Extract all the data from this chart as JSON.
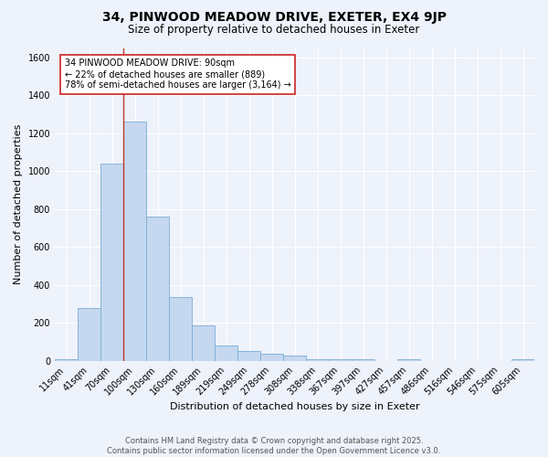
{
  "title_line1": "34, PINWOOD MEADOW DRIVE, EXETER, EX4 9JP",
  "title_line2": "Size of property relative to detached houses in Exeter",
  "xlabel": "Distribution of detached houses by size in Exeter",
  "ylabel": "Number of detached properties",
  "bar_labels": [
    "11sqm",
    "41sqm",
    "70sqm",
    "100sqm",
    "130sqm",
    "160sqm",
    "189sqm",
    "219sqm",
    "249sqm",
    "278sqm",
    "308sqm",
    "338sqm",
    "367sqm",
    "397sqm",
    "427sqm",
    "457sqm",
    "486sqm",
    "516sqm",
    "546sqm",
    "575sqm",
    "605sqm"
  ],
  "bar_values": [
    10,
    280,
    1040,
    1260,
    760,
    335,
    185,
    80,
    50,
    38,
    25,
    10,
    8,
    10,
    0,
    10,
    0,
    0,
    0,
    0,
    10
  ],
  "bar_color": "#c5d8f0",
  "bar_edge_color": "#7aadd4",
  "background_color": "#eef2fb",
  "grid_color": "#ffffff",
  "vline_color": "#c0392b",
  "ylim": [
    0,
    1650
  ],
  "yticks": [
    0,
    200,
    400,
    600,
    800,
    1000,
    1200,
    1400,
    1600
  ],
  "annotation_text": "34 PINWOOD MEADOW DRIVE: 90sqm\n← 22% of detached houses are smaller (889)\n78% of semi-detached houses are larger (3,164) →",
  "annotation_box_color": "#ffffff",
  "annotation_box_edge_color": "#cc2222",
  "footer_text": "Contains HM Land Registry data © Crown copyright and database right 2025.\nContains public sector information licensed under the Open Government Licence v3.0.",
  "title_fontsize": 10,
  "subtitle_fontsize": 8.5,
  "axis_label_fontsize": 8,
  "tick_fontsize": 7,
  "annotation_fontsize": 7,
  "footer_fontsize": 6
}
